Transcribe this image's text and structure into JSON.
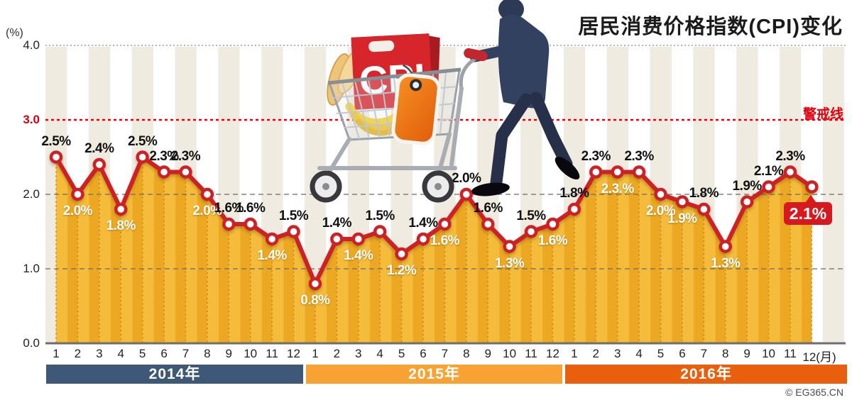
{
  "page": {
    "copyright": "© EG365.CN"
  },
  "illustration": {
    "bag_label": "CPI"
  },
  "chart_data": {
    "type": "line",
    "title": "居民消费价格指数(CPI)变化",
    "ylabel": "(%)",
    "xlabel": "",
    "ylim": [
      0,
      4
    ],
    "ytick_values": [
      4,
      3,
      2,
      1,
      0
    ],
    "ytick_labels": [
      "4.0",
      "3.0",
      "2.0",
      "1.0",
      "0.0"
    ],
    "warning_line": {
      "value": 3,
      "label": "警戒线"
    },
    "x_months": [
      1,
      2,
      3,
      4,
      5,
      6,
      7,
      8,
      9,
      10,
      11,
      12,
      1,
      2,
      3,
      4,
      5,
      6,
      7,
      8,
      9,
      10,
      11,
      12,
      1,
      2,
      3,
      4,
      5,
      6,
      7,
      8,
      9,
      10,
      11,
      12
    ],
    "last_month_label": "12(月)",
    "series": [
      {
        "name": "2014年",
        "band_color": "#3e5878",
        "values": [
          2.5,
          2.0,
          2.4,
          1.8,
          2.5,
          2.3,
          2.3,
          2.0,
          1.6,
          1.6,
          1.4,
          1.5
        ]
      },
      {
        "name": "2015年",
        "band_color": "#f7a233",
        "values": [
          0.8,
          1.4,
          1.4,
          1.5,
          1.2,
          1.4,
          1.6,
          2.0,
          1.6,
          1.3,
          1.5,
          1.6
        ]
      },
      {
        "name": "2016年",
        "band_color": "#e8600e",
        "values": [
          1.8,
          2.3,
          2.3,
          2.3,
          2.0,
          1.9,
          1.8,
          1.3,
          1.9,
          2.1,
          2.3,
          2.1
        ]
      }
    ],
    "point_labels": [
      "2.5%",
      "2.0%",
      "2.4%",
      "1.8%",
      "2.5%",
      "2.3%",
      "2.3%",
      "2.0%",
      "1.6%",
      "1.6%",
      "1.4%",
      "1.5%",
      "0.8%",
      "1.4%",
      "1.4%",
      "1.5%",
      "1.2%",
      "1.4%",
      "1.6%",
      "2.0%",
      "1.6%",
      "1.3%",
      "1.5%",
      "1.6%",
      "1.8%",
      "2.3%",
      "2.3.%",
      "2.3%",
      "2.0%",
      "1.9%",
      "1.8%",
      "1.3%",
      "1.9%",
      "2.1%",
      "2.3%",
      "2.1%"
    ],
    "label_positions": [
      "above",
      "below",
      "above",
      "below",
      "above",
      "above",
      "above",
      "below",
      "above",
      "above",
      "below",
      "above",
      "below",
      "above",
      "below",
      "above",
      "below",
      "above",
      "below",
      "above",
      "above",
      "below",
      "above",
      "below",
      "above",
      "above",
      "below",
      "above",
      "below",
      "below",
      "above",
      "below",
      "above",
      "above",
      "above",
      "callout"
    ],
    "callout_label": "2.1%",
    "line_color": "#cc2128",
    "marker_fill": "#ffffff",
    "area_colors": [
      "#f4bc3a",
      "#eca823"
    ],
    "leader_color": "#c8871d",
    "warning_color": "#e3000f",
    "stripe_color": "#f0ebe1",
    "grid_on": true,
    "legend_position": "bottom-bands"
  }
}
